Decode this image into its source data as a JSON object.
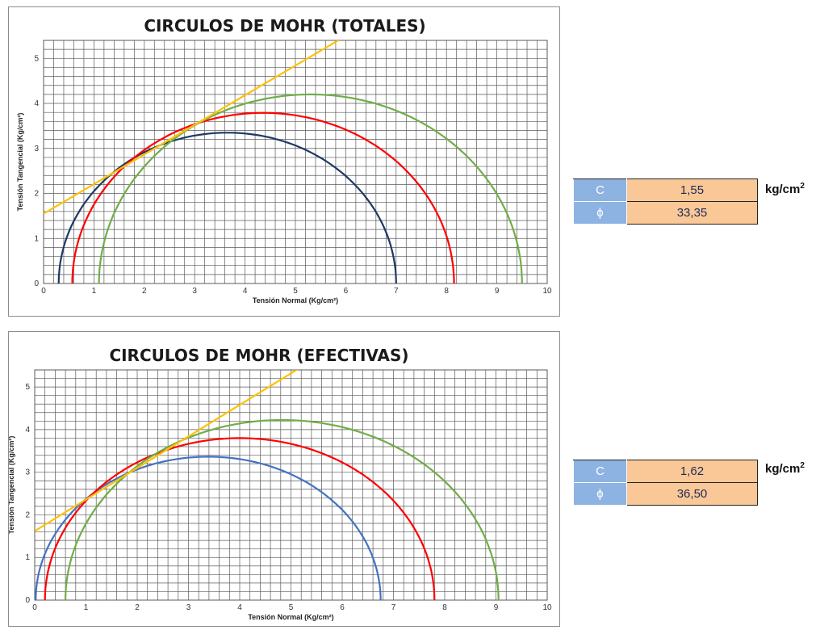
{
  "chart_data": [
    {
      "type": "line",
      "title": "CIRCULOS DE MOHR (TOTALES)",
      "xlabel": "Tensión Normal (Kg/cm²)",
      "ylabel": "Tensión Tangencial (Kg/cm²)",
      "xlim": [
        0,
        10
      ],
      "ylim": [
        0,
        5.4
      ],
      "x_ticks": [
        "0",
        "1",
        "2",
        "3",
        "4",
        "5",
        "6",
        "7",
        "8",
        "9",
        "10"
      ],
      "y_ticks": [
        "0",
        "1",
        "2",
        "3",
        "4",
        "5"
      ],
      "grid": true,
      "circles": [
        {
          "sigma3": 0.3,
          "sigma1": 7.0,
          "color": "#1f3864"
        },
        {
          "sigma3": 0.57,
          "sigma1": 8.15,
          "color": "#ff0000"
        },
        {
          "sigma3": 1.1,
          "sigma1": 9.5,
          "color": "#70ad47"
        }
      ],
      "envelope": {
        "c": 1.55,
        "phi_deg": 33.35,
        "color": "#ffc000"
      }
    },
    {
      "type": "line",
      "title": "CIRCULOS DE MOHR (EFECTIVAS)",
      "xlabel": "Tensión Normal (Kg/cm²)",
      "ylabel": "Tensión Tangencial (Kg/cm²)",
      "xlim": [
        0,
        10
      ],
      "ylim": [
        0,
        5.4
      ],
      "x_ticks": [
        "0",
        "1",
        "2",
        "3",
        "4",
        "5",
        "6",
        "7",
        "8",
        "9",
        "10"
      ],
      "y_ticks": [
        "0",
        "1",
        "2",
        "3",
        "4",
        "5"
      ],
      "grid": true,
      "circles": [
        {
          "sigma3": 0.02,
          "sigma1": 6.75,
          "color": "#4472c4"
        },
        {
          "sigma3": 0.2,
          "sigma1": 7.8,
          "color": "#ff0000"
        },
        {
          "sigma3": 0.6,
          "sigma1": 9.05,
          "color": "#70ad47"
        }
      ],
      "envelope": {
        "c": 1.62,
        "phi_deg": 36.5,
        "color": "#ffc000"
      }
    }
  ],
  "results": [
    {
      "c_symbol": "C",
      "c_value": "1,55",
      "phi_symbol": "ϕ",
      "phi_value": "33,35",
      "unit": "kg/cm",
      "unit_exp": "2"
    },
    {
      "c_symbol": "C",
      "c_value": "1,62",
      "phi_symbol": "ϕ",
      "phi_value": "36,50",
      "unit": "kg/cm",
      "unit_exp": "2"
    }
  ]
}
